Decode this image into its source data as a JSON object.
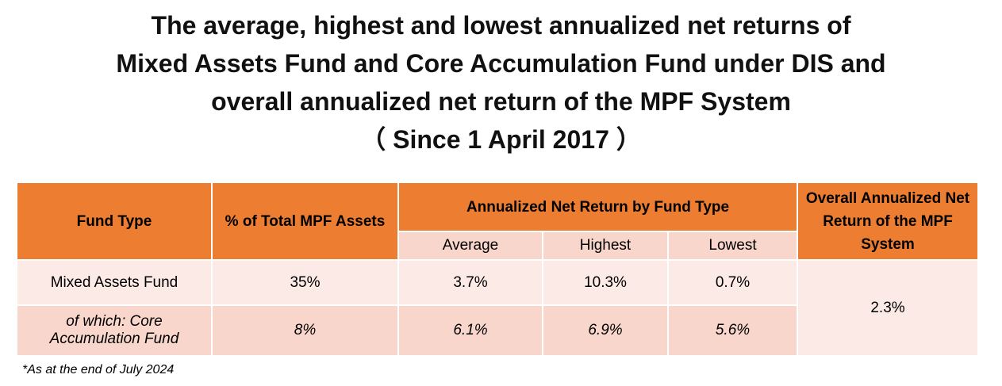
{
  "title": {
    "line1": "The average, highest and lowest annualized net returns of",
    "line2": "Mixed Assets Fund and Core Accumulation Fund under DIS and",
    "line3": "overall annualized net return of the MPF System",
    "line4": "（ Since 1 April 2017 ）"
  },
  "table": {
    "headers": {
      "fund_type": "Fund Type",
      "pct_assets": "% of Total MPF Assets",
      "annualized_by_type": "Annualized Net Return by Fund Type",
      "average": "Average",
      "highest": "Highest",
      "lowest": "Lowest",
      "overall": "Overall Annualized Net Return of the MPF System"
    },
    "rows": [
      {
        "fund_type": "Mixed Assets Fund",
        "pct": "35%",
        "average": "3.7%",
        "highest": "10.3%",
        "lowest": "0.7%"
      },
      {
        "fund_type": "of which: Core Accumulation Fund",
        "pct": "8%",
        "average": "6.1%",
        "highest": "6.9%",
        "lowest": "5.6%"
      }
    ],
    "overall_value": "2.3%"
  },
  "footnote": "*As at the end of July 2024",
  "colors": {
    "header": "#ED7D31",
    "row_light": "#FBEAE5",
    "row_medium": "#F8D6CB"
  }
}
